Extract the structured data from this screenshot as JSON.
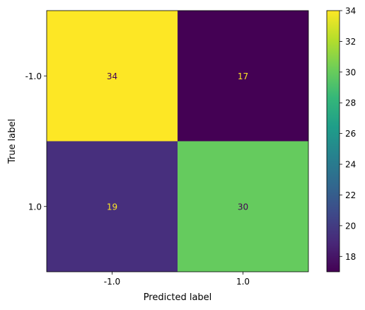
{
  "chart_data": {
    "type": "heatmap",
    "title": "",
    "xlabel": "Predicted label",
    "ylabel": "True label",
    "x_categories": [
      "-1.0",
      "1.0"
    ],
    "y_categories": [
      "-1.0",
      "1.0"
    ],
    "values": [
      [
        34,
        17
      ],
      [
        19,
        30
      ]
    ],
    "colormap": "viridis",
    "cell_colors": [
      [
        "#fde725",
        "#440154"
      ],
      [
        "#472f7d",
        "#65cb5e"
      ]
    ],
    "text_colors": [
      [
        "#440154",
        "#fde725"
      ],
      [
        "#fde725",
        "#440154"
      ]
    ],
    "colorbar": {
      "range": [
        17,
        34
      ],
      "ticks": [
        18,
        20,
        22,
        24,
        26,
        28,
        30,
        32,
        34
      ],
      "tick_labels": [
        "18",
        "20",
        "22",
        "24",
        "26",
        "28",
        "30",
        "32",
        "34"
      ],
      "stops": [
        "#440154",
        "#482878",
        "#3e4989",
        "#31688e",
        "#26828e",
        "#1f9e89",
        "#35b779",
        "#6ece58",
        "#b5de2b",
        "#fde725"
      ]
    }
  }
}
